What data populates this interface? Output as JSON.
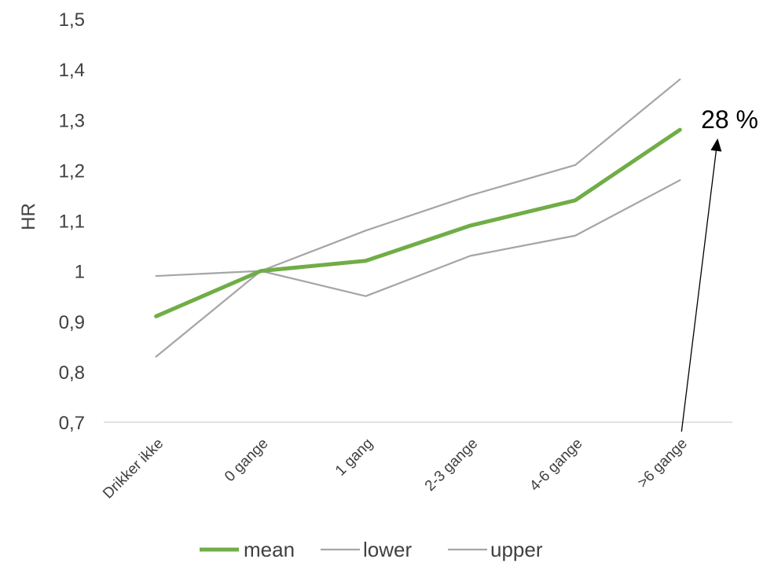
{
  "chart_data": {
    "type": "line",
    "categories": [
      "Drikker ikke",
      "0 gange",
      "1 gang",
      "2-3 gange",
      "4-6 gange",
      ">6 gange"
    ],
    "ylabel": "HR",
    "xlabel": "",
    "ylim": [
      0.7,
      1.5
    ],
    "y_ticks": [
      "0,7",
      "0,8",
      "0,9",
      "1",
      "1,1",
      "1,2",
      "1,3",
      "1,4",
      "1,5"
    ],
    "grid": false,
    "legend": "bottom",
    "series": [
      {
        "name": "mean",
        "values": [
          0.91,
          1.0,
          1.02,
          1.09,
          1.14,
          1.28
        ],
        "color": "#70ad47"
      },
      {
        "name": "lower",
        "values": [
          0.83,
          1.0,
          0.95,
          1.03,
          1.07,
          1.18
        ],
        "color": "#a5a5a5"
      },
      {
        "name": "upper",
        "values": [
          0.99,
          1.0,
          1.08,
          1.15,
          1.21,
          1.38
        ],
        "color": "#a5a5a5"
      }
    ],
    "annotation": {
      "text": "28 %"
    }
  }
}
